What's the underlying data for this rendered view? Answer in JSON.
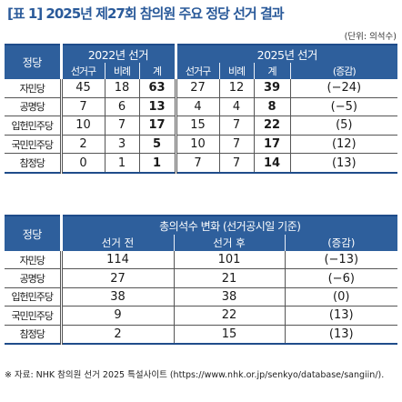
{
  "title": "[표 1] 2025년 제27회 참의원 주요 정당 선거 결과",
  "unit": "(단위: 의석수)",
  "table1": {
    "party_header": "정당",
    "group_2022": "2022년 선거",
    "group_2025": "2025년 선거",
    "sub_2022": [
      "선거구",
      "비례",
      "계"
    ],
    "sub_2025": [
      "선거구",
      "비례",
      "계",
      "(증감)"
    ],
    "rows": [
      {
        "party": "자민당",
        "c22": "45",
        "p22": "18",
        "t22": "63",
        "c25": "27",
        "p25": "12",
        "t25": "39",
        "diff": "(−24)"
      },
      {
        "party": "공명당",
        "c22": "7",
        "p22": "6",
        "t22": "13",
        "c25": "4",
        "p25": "4",
        "t25": "8",
        "diff": "(−5)"
      },
      {
        "party": "입헌민주당",
        "c22": "10",
        "p22": "7",
        "t22": "17",
        "c25": "15",
        "p25": "7",
        "t25": "22",
        "diff": "(5)"
      },
      {
        "party": "국민민주당",
        "c22": "2",
        "p22": "3",
        "t22": "5",
        "c25": "10",
        "p25": "7",
        "t25": "17",
        "diff": "(12)"
      },
      {
        "party": "참정당",
        "c22": "0",
        "p22": "1",
        "t22": "1",
        "c25": "7",
        "p25": "7",
        "t25": "14",
        "diff": "(13)"
      }
    ]
  },
  "table2": {
    "party_header": "정당",
    "group": "총의석수 변화 (선거공시일 기준)",
    "sub": [
      "선거 전",
      "선거 후",
      "(증감)"
    ],
    "rows": [
      {
        "party": "자민당",
        "before": "114",
        "after": "101",
        "diff": "(−13)"
      },
      {
        "party": "공명당",
        "before": "27",
        "after": "21",
        "diff": "(−6)"
      },
      {
        "party": "입헌민주당",
        "before": "38",
        "after": "38",
        "diff": "(0)"
      },
      {
        "party": "국민민주당",
        "before": "9",
        "after": "22",
        "diff": "(13)"
      },
      {
        "party": "참정당",
        "before": "2",
        "after": "15",
        "diff": "(13)"
      }
    ]
  },
  "source": "※ 자료: NHK 참의원 선거 2025 특설사이트 (https://www.nhk.or.jp/senkyo/database/sangiin/)."
}
